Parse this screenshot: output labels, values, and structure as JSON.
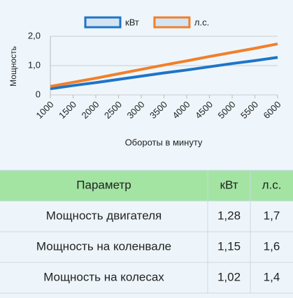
{
  "chart_data": {
    "type": "line",
    "ylabel": "Мощность",
    "xlabel": "Обороты в минуту",
    "x": [
      1000,
      1500,
      2000,
      2500,
      3000,
      3500,
      4000,
      4500,
      5000,
      5500,
      6000
    ],
    "xlim": [
      1000,
      6000
    ],
    "xticks": [
      1000,
      1500,
      2000,
      2500,
      3000,
      3500,
      4000,
      4500,
      5000,
      5500,
      6000
    ],
    "ylim": [
      0,
      2
    ],
    "yticks": [
      0,
      {
        "value": 1,
        "label": "1,0"
      },
      {
        "value": 2,
        "label": "2,0"
      }
    ],
    "grid": true,
    "legend": "top",
    "series": [
      {
        "name": "кВт",
        "color": "#1f74c8",
        "values": [
          0.21,
          0.32,
          0.42,
          0.53,
          0.64,
          0.75,
          0.85,
          0.96,
          1.07,
          1.17,
          1.28
        ]
      },
      {
        "name": "л.с.",
        "color": "#f0802c",
        "values": [
          0.29,
          0.43,
          0.57,
          0.72,
          0.87,
          1.02,
          1.16,
          1.31,
          1.45,
          1.59,
          1.74
        ]
      }
    ]
  },
  "table": {
    "header": [
      "Параметр",
      "кВт",
      "л.с."
    ],
    "rows": [
      [
        "Мощность двигателя",
        "1,28",
        "1,7"
      ],
      [
        "Мощность на коленвале",
        "1,15",
        "1,6"
      ],
      [
        "Мощность на колесах",
        "1,02",
        "1,4"
      ]
    ]
  }
}
